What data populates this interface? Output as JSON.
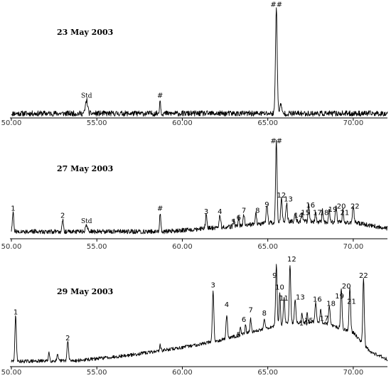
{
  "chart_data": [
    {
      "type": "line",
      "title": "23 May 2003",
      "xlim": [
        50.0,
        72.0
      ],
      "ylim": [
        0,
        100
      ],
      "xticks": [
        "50.00",
        "55.00",
        "60.00",
        "65.00",
        "70.00"
      ],
      "xtick_values": [
        50,
        55,
        60,
        65,
        70
      ],
      "baseline": 2,
      "noise": 2.5,
      "seed": 11,
      "peaks": [
        {
          "x": 54.4,
          "h": 12,
          "w": 0.09
        },
        {
          "x": 58.7,
          "h": 12,
          "w": 0.05
        },
        {
          "x": 65.5,
          "h": 96,
          "w": 0.07
        },
        {
          "x": 65.75,
          "h": 8,
          "w": 0.08
        }
      ],
      "labels": [
        {
          "text": "Std",
          "x": 54.4,
          "y": 17,
          "style": "std"
        },
        {
          "text": "#",
          "x": 58.7,
          "y": 17
        },
        {
          "text": "##",
          "x": 65.5,
          "y": 99
        }
      ]
    },
    {
      "type": "line",
      "title": "27 May 2003",
      "xlim": [
        50.0,
        72.0
      ],
      "ylim": [
        0,
        100
      ],
      "xticks": [
        "50.00",
        "55.00",
        "60.00",
        "65.00",
        "70.00"
      ],
      "xtick_values": [
        50,
        55,
        60,
        65,
        70
      ],
      "baseline": 5,
      "noise": 2.2,
      "seed": 27,
      "rise": [
        [
          50,
          5
        ],
        [
          59,
          5
        ],
        [
          63,
          10
        ],
        [
          66,
          15
        ],
        [
          70,
          14
        ],
        [
          72,
          8
        ]
      ],
      "peaks": [
        {
          "x": 50.1,
          "h": 18,
          "w": 0.06
        },
        {
          "x": 53.0,
          "h": 12,
          "w": 0.06
        },
        {
          "x": 54.4,
          "h": 6,
          "w": 0.08
        },
        {
          "x": 58.7,
          "h": 18,
          "w": 0.05
        },
        {
          "x": 61.4,
          "h": 14,
          "w": 0.06
        },
        {
          "x": 62.2,
          "h": 12,
          "w": 0.06
        },
        {
          "x": 63.0,
          "h": 6,
          "w": 0.05
        },
        {
          "x": 63.3,
          "h": 8,
          "w": 0.05
        },
        {
          "x": 63.6,
          "h": 10,
          "w": 0.06
        },
        {
          "x": 64.3,
          "h": 10,
          "w": 0.06
        },
        {
          "x": 64.95,
          "h": 18,
          "w": 0.06
        },
        {
          "x": 65.5,
          "h": 80,
          "w": 0.06
        },
        {
          "x": 65.8,
          "h": 22,
          "w": 0.06
        },
        {
          "x": 66.1,
          "h": 18,
          "w": 0.06
        },
        {
          "x": 66.6,
          "h": 8,
          "w": 0.05
        },
        {
          "x": 67.0,
          "h": 10,
          "w": 0.05
        },
        {
          "x": 67.4,
          "h": 16,
          "w": 0.06
        },
        {
          "x": 67.8,
          "h": 10,
          "w": 0.05
        },
        {
          "x": 68.2,
          "h": 12,
          "w": 0.05
        },
        {
          "x": 68.6,
          "h": 12,
          "w": 0.05
        },
        {
          "x": 69.0,
          "h": 16,
          "w": 0.06
        },
        {
          "x": 69.4,
          "h": 12,
          "w": 0.05
        },
        {
          "x": 70.0,
          "h": 16,
          "w": 0.06
        }
      ],
      "labels": [
        {
          "text": "1",
          "x": 50.1,
          "y": 26
        },
        {
          "text": "2",
          "x": 53.0,
          "y": 19
        },
        {
          "text": "Std",
          "x": 54.4,
          "y": 14,
          "style": "std"
        },
        {
          "text": "#",
          "x": 58.7,
          "y": 26
        },
        {
          "text": "3",
          "x": 61.4,
          "y": 23
        },
        {
          "text": "4",
          "x": 62.2,
          "y": 23
        },
        {
          "text": "5",
          "x": 63.0,
          "y": 13
        },
        {
          "text": "6",
          "x": 63.3,
          "y": 17
        },
        {
          "text": "7",
          "x": 63.6,
          "y": 24
        },
        {
          "text": "8",
          "x": 64.4,
          "y": 24
        },
        {
          "text": "9",
          "x": 64.95,
          "y": 30
        },
        {
          "text": "##",
          "x": 65.5,
          "y": 92
        },
        {
          "text": "12",
          "x": 65.8,
          "y": 39
        },
        {
          "text": "13",
          "x": 66.2,
          "y": 35
        },
        {
          "text": "14",
          "x": 66.8,
          "y": 19
        },
        {
          "text": "15",
          "x": 67.2,
          "y": 22
        },
        {
          "text": "16",
          "x": 67.5,
          "y": 29
        },
        {
          "text": "17",
          "x": 67.9,
          "y": 22
        },
        {
          "text": "18",
          "x": 68.3,
          "y": 22
        },
        {
          "text": "19",
          "x": 68.8,
          "y": 25
        },
        {
          "text": "20",
          "x": 69.3,
          "y": 28
        },
        {
          "text": "21",
          "x": 69.5,
          "y": 22
        },
        {
          "text": "22",
          "x": 70.1,
          "y": 28
        }
      ]
    },
    {
      "type": "line",
      "title": "29 May 2003",
      "xlim": [
        50.0,
        72.0
      ],
      "ylim": [
        0,
        100
      ],
      "xticks": [
        "50.00",
        "55.00",
        "60.00",
        "65.00",
        "70.00"
      ],
      "xtick_values": [
        50,
        55,
        60,
        65,
        70
      ],
      "baseline": 3,
      "noise": 1.6,
      "seed": 29,
      "rise": [
        [
          50,
          3
        ],
        [
          54,
          4
        ],
        [
          57,
          9
        ],
        [
          60,
          16
        ],
        [
          62,
          22
        ],
        [
          64,
          30
        ],
        [
          66,
          38
        ],
        [
          68,
          40
        ],
        [
          70,
          30
        ],
        [
          71,
          12
        ],
        [
          72,
          5
        ]
      ],
      "peaks": [
        {
          "x": 50.25,
          "h": 42,
          "w": 0.06
        },
        {
          "x": 52.2,
          "h": 8,
          "w": 0.05
        },
        {
          "x": 52.7,
          "h": 5,
          "w": 0.05
        },
        {
          "x": 53.3,
          "h": 18,
          "w": 0.06
        },
        {
          "x": 58.7,
          "h": 5,
          "w": 0.05
        },
        {
          "x": 61.8,
          "h": 48,
          "w": 0.06
        },
        {
          "x": 62.6,
          "h": 22,
          "w": 0.06
        },
        {
          "x": 63.4,
          "h": 8,
          "w": 0.05
        },
        {
          "x": 63.7,
          "h": 8,
          "w": 0.05
        },
        {
          "x": 64.0,
          "h": 12,
          "w": 0.06
        },
        {
          "x": 64.8,
          "h": 10,
          "w": 0.06
        },
        {
          "x": 65.5,
          "h": 56,
          "w": 0.06
        },
        {
          "x": 65.7,
          "h": 30,
          "w": 0.05
        },
        {
          "x": 65.95,
          "h": 24,
          "w": 0.06
        },
        {
          "x": 66.3,
          "h": 54,
          "w": 0.06
        },
        {
          "x": 66.6,
          "h": 22,
          "w": 0.06
        },
        {
          "x": 67.0,
          "h": 8,
          "w": 0.05
        },
        {
          "x": 67.3,
          "h": 10,
          "w": 0.05
        },
        {
          "x": 67.8,
          "h": 18,
          "w": 0.06
        },
        {
          "x": 68.1,
          "h": 12,
          "w": 0.05
        },
        {
          "x": 68.6,
          "h": 18,
          "w": 0.06
        },
        {
          "x": 69.3,
          "h": 38,
          "w": 0.06
        },
        {
          "x": 69.8,
          "h": 42,
          "w": 0.06
        },
        {
          "x": 70.6,
          "h": 62,
          "w": 0.06
        }
      ],
      "labels": [
        {
          "text": "1",
          "x": 50.25,
          "y": 47
        },
        {
          "text": "2",
          "x": 53.3,
          "y": 23
        },
        {
          "text": "3",
          "x": 61.8,
          "y": 72
        },
        {
          "text": "4",
          "x": 62.6,
          "y": 54
        },
        {
          "text": "5",
          "x": 63.3,
          "y": 26
        },
        {
          "text": "6",
          "x": 63.6,
          "y": 40
        },
        {
          "text": "7",
          "x": 64.0,
          "y": 49
        },
        {
          "text": "8",
          "x": 64.8,
          "y": 46
        },
        {
          "text": "9",
          "x": 65.4,
          "y": 81
        },
        {
          "text": "10",
          "x": 65.7,
          "y": 70
        },
        {
          "text": "11",
          "x": 65.95,
          "y": 60
        },
        {
          "text": "12",
          "x": 66.4,
          "y": 96
        },
        {
          "text": "13",
          "x": 66.9,
          "y": 61
        },
        {
          "text": "14",
          "x": 67.1,
          "y": 37
        },
        {
          "text": "15",
          "x": 67.4,
          "y": 39
        },
        {
          "text": "16",
          "x": 67.9,
          "y": 59
        },
        {
          "text": "17",
          "x": 68.3,
          "y": 41
        },
        {
          "text": "18",
          "x": 68.7,
          "y": 55
        },
        {
          "text": "19",
          "x": 69.2,
          "y": 62
        },
        {
          "text": "20",
          "x": 69.6,
          "y": 71
        },
        {
          "text": "21",
          "x": 69.9,
          "y": 57
        },
        {
          "text": "22",
          "x": 70.6,
          "y": 81
        }
      ]
    }
  ]
}
